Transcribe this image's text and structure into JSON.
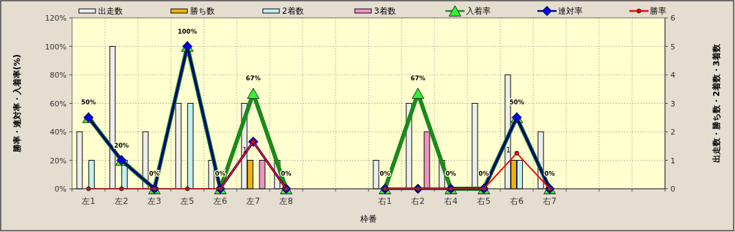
{
  "chart_data": {
    "type": "bar",
    "xlabel": "枠番",
    "ylabel": "勝率・連対率・入着率(%)",
    "y2label": "出走数・勝ち数・2着数・3着数",
    "categories": [
      "左1",
      "左2",
      "左3",
      "左5",
      "左6",
      "左7",
      "左8",
      null,
      null,
      "右1",
      "右2",
      "右4",
      "右5",
      "右6",
      "右7",
      null,
      null,
      null
    ],
    "ylim": [
      0,
      120
    ],
    "yticks": [
      {
        "value": 0,
        "label": "0%"
      },
      {
        "value": 20,
        "label": "20%"
      },
      {
        "value": 40,
        "label": "40%"
      },
      {
        "value": 60,
        "label": "60%"
      },
      {
        "value": 80,
        "label": "80%"
      },
      {
        "value": 100,
        "label": "100%"
      },
      {
        "value": 120,
        "label": "120%"
      }
    ],
    "y2lim": [
      0,
      6
    ],
    "y2ticks": [
      0,
      1,
      2,
      3,
      4,
      5,
      6
    ],
    "grid": true,
    "legend": "top",
    "series": [
      {
        "name": "出走数",
        "axis": "y2",
        "color": "#eeeeee",
        "values": [
          2,
          5,
          2,
          3,
          1,
          3,
          1,
          null,
          null,
          1,
          3,
          1,
          3,
          4,
          2,
          null,
          null,
          null
        ]
      },
      {
        "name": "勝ち数",
        "axis": "y2",
        "color": "#f0b400",
        "values": [
          0,
          0,
          0,
          0,
          0,
          1,
          0,
          null,
          null,
          0,
          0,
          0,
          0,
          1,
          0,
          null,
          null,
          null
        ],
        "value_labels": [
          null,
          null,
          null,
          null,
          null,
          "1",
          null,
          null,
          null,
          null,
          null,
          null,
          null,
          "1",
          null,
          null,
          null,
          null
        ]
      },
      {
        "name": "2着数",
        "axis": "y2",
        "color": "#c4f0f0",
        "values": [
          1,
          1,
          0,
          3,
          0,
          0,
          0,
          null,
          null,
          0,
          0,
          0,
          0,
          1,
          0,
          null,
          null,
          null
        ]
      },
      {
        "name": "3着数",
        "axis": "y2",
        "color": "#f094c4",
        "values": [
          0,
          0,
          0,
          0,
          0,
          1,
          0,
          null,
          null,
          0,
          2,
          0,
          0,
          0,
          0,
          null,
          null,
          null
        ]
      },
      {
        "name": "入着率",
        "type": "line",
        "marker": "triangle",
        "color": "#1a8a1a",
        "values": [
          50,
          20,
          0,
          100,
          0,
          67,
          0,
          null,
          null,
          0,
          67,
          0,
          0,
          50,
          0,
          null,
          null,
          null
        ],
        "value_labels": [
          "50%",
          "20%",
          "0%",
          "100%",
          "0%",
          "67%",
          "0%",
          null,
          null,
          "0%",
          "67%",
          "0%",
          "0%",
          "50%",
          "0%",
          null,
          null,
          null
        ]
      },
      {
        "name": "連対率",
        "type": "line",
        "marker": "diamond",
        "color": "#000080",
        "values": [
          50,
          20,
          0,
          100,
          0,
          33,
          0,
          null,
          null,
          0,
          0,
          0,
          0,
          50,
          0,
          null,
          null,
          null
        ]
      },
      {
        "name": "勝率",
        "type": "line",
        "marker": "circle",
        "color": "#ff0000",
        "values": [
          0,
          0,
          0,
          0,
          0,
          33,
          0,
          null,
          null,
          0,
          0,
          0,
          0,
          25,
          0,
          null,
          null,
          null
        ]
      }
    ]
  }
}
